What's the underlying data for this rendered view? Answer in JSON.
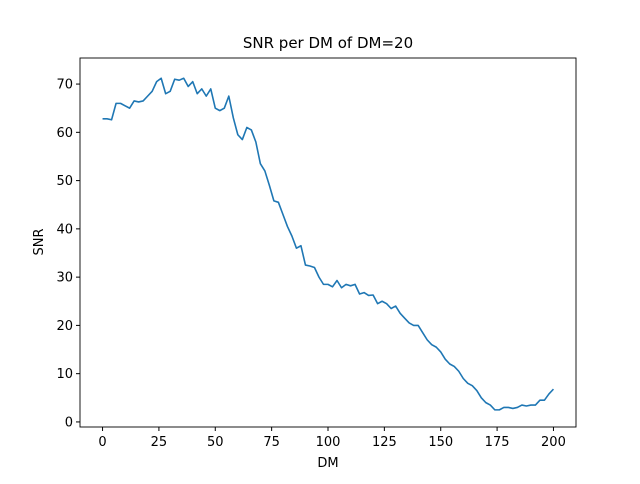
{
  "chart_data": {
    "type": "line",
    "title": "SNR per DM of DM=20",
    "x_label": "DM",
    "y_label": "SNR",
    "x": [
      0,
      2,
      4,
      6,
      8,
      10,
      12,
      14,
      16,
      18,
      20,
      22,
      24,
      26,
      28,
      30,
      32,
      34,
      36,
      38,
      40,
      42,
      44,
      46,
      48,
      50,
      52,
      54,
      56,
      58,
      60,
      62,
      64,
      66,
      68,
      70,
      72,
      74,
      76,
      78,
      80,
      82,
      84,
      86,
      88,
      90,
      92,
      94,
      96,
      98,
      100,
      102,
      104,
      106,
      108,
      110,
      112,
      114,
      116,
      118,
      120,
      122,
      124,
      126,
      128,
      130,
      132,
      134,
      136,
      138,
      140,
      142,
      144,
      146,
      148,
      150,
      152,
      154,
      156,
      158,
      160,
      162,
      164,
      166,
      168,
      170,
      172,
      174,
      176,
      178,
      180,
      182,
      184,
      186,
      188,
      190,
      192,
      194,
      196,
      198,
      200
    ],
    "series": [
      {
        "name": "SNR",
        "color": "#1f77b4",
        "values": [
          62.8,
          62.8,
          62.6,
          66,
          66,
          65.5,
          65,
          66.5,
          66.3,
          66.5,
          67.5,
          68.5,
          70.5,
          71.2,
          68,
          68.5,
          71,
          70.8,
          71.2,
          69.5,
          70.5,
          68,
          69,
          67.5,
          69,
          65,
          64.5,
          65,
          67.5,
          63,
          59.5,
          58.5,
          61,
          60.5,
          58,
          53.5,
          52,
          49,
          45.8,
          45.5,
          43,
          40.5,
          38.5,
          36,
          36.5,
          32.5,
          32.3,
          32,
          30,
          28.5,
          28.5,
          28,
          29.3,
          27.8,
          28.5,
          28.2,
          28.5,
          26.5,
          26.8,
          26.2,
          26.3,
          24.5,
          25,
          24.5,
          23.5,
          24,
          22.5,
          21.5,
          20.5,
          20,
          20,
          18.5,
          17,
          16,
          15.5,
          14.5,
          13,
          12,
          11.5,
          10.5,
          9,
          8,
          7.5,
          6.5,
          5,
          4,
          3.5,
          2.5,
          2.5,
          3,
          3,
          2.8,
          3,
          3.5,
          3.3,
          3.5,
          3.5,
          4.5,
          4.5,
          5.8,
          6.8
        ]
      }
    ],
    "xlim": [
      -10,
      210
    ],
    "ylim": [
      -1.05,
      75.4
    ],
    "xticks": [
      0,
      25,
      50,
      75,
      100,
      125,
      150,
      175,
      200
    ],
    "yticks": [
      0,
      10,
      20,
      30,
      40,
      50,
      60,
      70
    ],
    "grid": false
  }
}
